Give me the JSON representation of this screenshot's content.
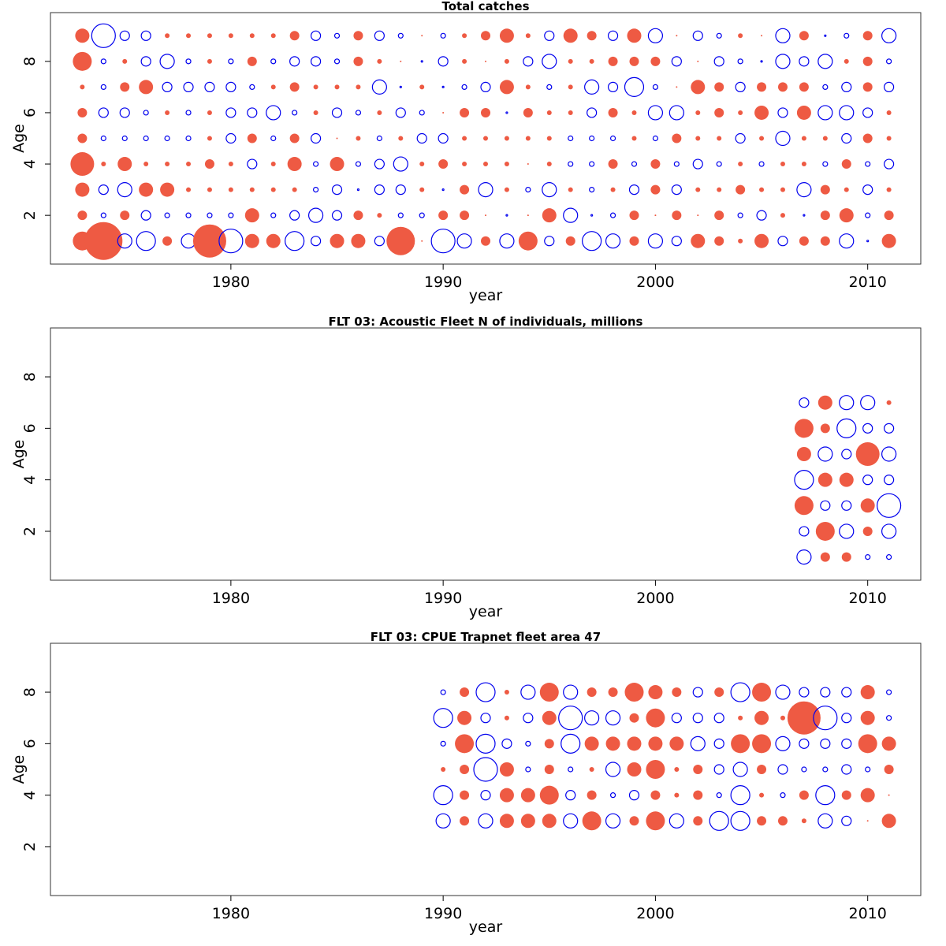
{
  "figure": {
    "positive_color": "#ee5a43",
    "negative_color": "#0000ee"
  },
  "chart_data": [
    {
      "type": "bubble",
      "title": "Total catches",
      "xlabel": "year",
      "ylabel": "Age",
      "xlim": [
        1971.5,
        2012.5
      ],
      "ylim": [
        0.1,
        9.9
      ],
      "xticks": [
        1980,
        1990,
        2000,
        2010
      ],
      "yticks": [
        2,
        4,
        6,
        8
      ],
      "x": [
        1973,
        1974,
        1975,
        1976,
        1977,
        1978,
        1979,
        1980,
        1981,
        1982,
        1983,
        1984,
        1985,
        1986,
        1987,
        1988,
        1989,
        1990,
        1991,
        1992,
        1993,
        1994,
        1995,
        1996,
        1997,
        1998,
        1999,
        2000,
        2001,
        2002,
        2003,
        2004,
        2005,
        2006,
        2007,
        2008,
        2009,
        2010,
        2011
      ],
      "ages": [
        1,
        2,
        3,
        4,
        5,
        6,
        7,
        8,
        9
      ],
      "matrix": [
        [
          4,
          8,
          -3,
          -4,
          2,
          -3,
          7,
          -5,
          3,
          3,
          -4,
          -2,
          3,
          3,
          -2,
          6,
          0,
          -5,
          -3,
          2,
          -3,
          4,
          -2,
          2,
          -4,
          -3,
          2,
          -3,
          -2,
          3,
          2,
          1,
          3,
          -2,
          2,
          2,
          -3,
          0,
          3
        ],
        [
          2,
          -1,
          2,
          -2,
          -1,
          -1,
          -1,
          -1,
          3,
          -1,
          -2,
          -3,
          -2,
          2,
          1,
          -1,
          -1,
          2,
          2,
          0,
          0,
          0,
          3,
          -3,
          0,
          -1,
          2,
          0,
          2,
          0,
          2,
          -1,
          -2,
          1,
          0,
          2,
          3,
          -1,
          2
        ],
        [
          3,
          -2,
          -3,
          3,
          3,
          1,
          1,
          1,
          1,
          1,
          1,
          -1,
          -2,
          0,
          -2,
          -2,
          1,
          0,
          2,
          -3,
          1,
          -1,
          -3,
          1,
          -1,
          1,
          -2,
          2,
          -2,
          1,
          1,
          2,
          1,
          1,
          -3,
          2,
          1,
          -2,
          1
        ],
        [
          5,
          1,
          3,
          1,
          1,
          1,
          2,
          1,
          -2,
          1,
          3,
          -1,
          3,
          -1,
          -2,
          -3,
          1,
          2,
          1,
          1,
          1,
          0,
          1,
          -1,
          -1,
          2,
          -1,
          2,
          -1,
          -2,
          -1,
          1,
          -1,
          1,
          1,
          -1,
          2,
          -1,
          -2
        ],
        [
          2,
          -1,
          -1,
          -1,
          -1,
          -1,
          1,
          -2,
          2,
          -1,
          2,
          -2,
          0,
          1,
          -1,
          1,
          -2,
          -2,
          1,
          1,
          1,
          1,
          1,
          -1,
          -1,
          -1,
          1,
          -1,
          2,
          1,
          1,
          -2,
          1,
          -3,
          1,
          1,
          -2,
          2,
          1
        ],
        [
          2,
          -2,
          -2,
          -1,
          1,
          -1,
          1,
          -2,
          -2,
          -3,
          -1,
          1,
          -2,
          -1,
          1,
          -2,
          -1,
          0,
          2,
          2,
          0,
          2,
          1,
          1,
          -2,
          2,
          1,
          -3,
          -3,
          1,
          2,
          1,
          3,
          -2,
          3,
          -3,
          -3,
          -2,
          1
        ],
        [
          1,
          -1,
          2,
          3,
          -2,
          -2,
          -2,
          -2,
          -1,
          1,
          2,
          1,
          1,
          1,
          -3,
          0,
          1,
          0,
          -1,
          -2,
          3,
          1,
          -1,
          1,
          -3,
          -2,
          -4,
          -1,
          0,
          3,
          2,
          -2,
          2,
          2,
          2,
          -1,
          -2,
          2,
          -2
        ],
        [
          4,
          -1,
          1,
          -2,
          -3,
          -1,
          1,
          -1,
          2,
          -1,
          -2,
          -2,
          -1,
          2,
          1,
          0,
          0,
          -2,
          1,
          0,
          1,
          -2,
          -3,
          1,
          1,
          2,
          2,
          2,
          -2,
          0,
          -2,
          -1,
          0,
          -3,
          -2,
          -3,
          1,
          2,
          -1
        ],
        [
          3,
          -5,
          -2,
          -2,
          1,
          1,
          1,
          1,
          1,
          1,
          2,
          -2,
          -1,
          2,
          -2,
          -1,
          0,
          -1,
          1,
          2,
          3,
          1,
          -2,
          3,
          2,
          -2,
          3,
          -3,
          0,
          -2,
          -1,
          1,
          0,
          -3,
          2,
          0,
          -1,
          2,
          -3
        ]
      ]
    },
    {
      "type": "bubble",
      "title": "FLT 03: Acoustic Fleet  N of individuals, millions",
      "xlabel": "year",
      "ylabel": "Age",
      "xlim": [
        1971.5,
        2012.5
      ],
      "ylim": [
        0.1,
        9.9
      ],
      "xticks": [
        1980,
        1990,
        2000,
        2010
      ],
      "yticks": [
        2,
        4,
        6,
        8
      ],
      "x": [
        2007,
        2008,
        2009,
        2010,
        2011
      ],
      "ages": [
        1,
        2,
        3,
        4,
        5,
        6,
        7
      ],
      "matrix": [
        [
          -3,
          2,
          2,
          -1,
          -1
        ],
        [
          -2,
          4,
          -3,
          2,
          -3
        ],
        [
          4,
          -2,
          -2,
          3,
          -5
        ],
        [
          -4,
          3,
          3,
          -2,
          -2
        ],
        [
          3,
          -3,
          -2,
          5,
          -3
        ],
        [
          4,
          2,
          -4,
          -2,
          -2
        ],
        [
          -2,
          3,
          -3,
          -3,
          1
        ]
      ]
    },
    {
      "type": "bubble",
      "title": "FLT 03: CPUE Trapnet fleet area 47",
      "xlabel": "year",
      "ylabel": "Age",
      "xlim": [
        1971.5,
        2012.5
      ],
      "ylim": [
        0.1,
        9.9
      ],
      "xticks": [
        1980,
        1990,
        2000,
        2010
      ],
      "yticks": [
        2,
        4,
        6,
        8
      ],
      "x": [
        1990,
        1991,
        1992,
        1993,
        1994,
        1995,
        1996,
        1997,
        1998,
        1999,
        2000,
        2001,
        2002,
        2003,
        2004,
        2005,
        2006,
        2007,
        2008,
        2009,
        2010,
        2011
      ],
      "ages": [
        3,
        4,
        5,
        6,
        7,
        8
      ],
      "matrix": [
        [
          -3,
          2,
          -3,
          3,
          3,
          3,
          -3,
          4,
          -3,
          2,
          4,
          -3,
          2,
          -4,
          -4,
          2,
          2,
          1,
          -3,
          -2,
          0,
          3
        ],
        [
          -4,
          2,
          -2,
          3,
          3,
          4,
          -2,
          2,
          -1,
          -2,
          2,
          1,
          2,
          -1,
          -4,
          1,
          -1,
          2,
          -4,
          2,
          3,
          0
        ],
        [
          1,
          2,
          -5,
          3,
          -1,
          2,
          -1,
          1,
          -3,
          3,
          4,
          1,
          2,
          -2,
          -3,
          2,
          -2,
          -1,
          -1,
          -2,
          -1,
          2
        ],
        [
          -1,
          4,
          -4,
          -2,
          -1,
          2,
          -4,
          3,
          3,
          3,
          3,
          3,
          -3,
          -2,
          4,
          4,
          -3,
          -2,
          -2,
          -2,
          4,
          3
        ],
        [
          -4,
          3,
          -2,
          1,
          -2,
          3,
          -5,
          -3,
          -3,
          2,
          4,
          -2,
          -2,
          -2,
          1,
          3,
          1,
          7,
          -5,
          -2,
          3,
          -1
        ],
        [
          -1,
          2,
          -4,
          1,
          -3,
          4,
          -3,
          2,
          2,
          4,
          3,
          2,
          -2,
          2,
          -4,
          4,
          -3,
          -2,
          -2,
          -2,
          3,
          -1
        ]
      ]
    }
  ]
}
